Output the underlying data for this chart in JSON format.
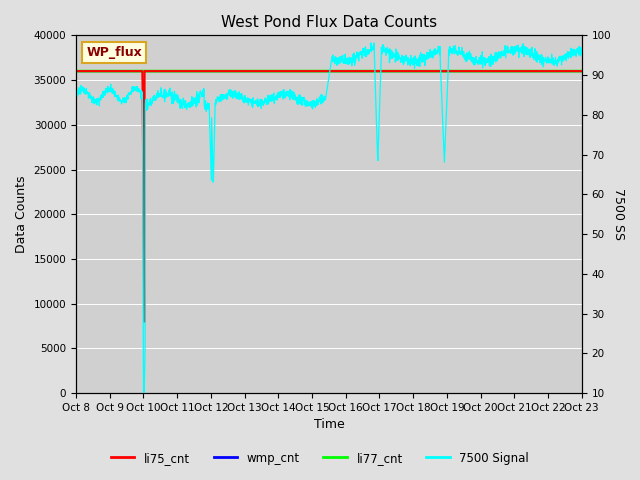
{
  "title": "West Pond Flux Data Counts",
  "xlabel": "Time",
  "ylabel_left": "Data Counts",
  "ylabel_right": "7500 SS",
  "annotation_box": "WP_flux",
  "xlim": [
    0,
    15
  ],
  "ylim_left": [
    0,
    40000
  ],
  "ylim_right": [
    10,
    100
  ],
  "fig_bg": "#e0e0e0",
  "plot_bg": "#d0d0d0",
  "xtick_labels": [
    "Oct 8",
    "Oct 9",
    "Oct 10",
    "Oct 11",
    "Oct 12",
    "Oct 13",
    "Oct 14",
    "Oct 15",
    "Oct 16",
    "Oct 17",
    "Oct 18",
    "Oct 19",
    "Oct 20",
    "Oct 21",
    "Oct 22",
    "Oct 23"
  ],
  "legend_labels": [
    "li75_cnt",
    "wmp_cnt",
    "li77_cnt",
    "7500 Signal"
  ],
  "legend_colors": [
    "red",
    "blue",
    "lime",
    "cyan"
  ],
  "title_fontsize": 11,
  "axis_fontsize": 9,
  "tick_fontsize": 7.5
}
